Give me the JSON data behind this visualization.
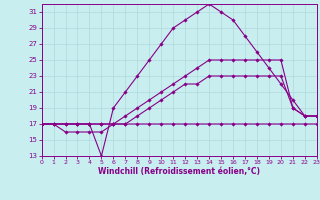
{
  "xlabel": "Windchill (Refroidissement éolien,°C)",
  "xlim": [
    0,
    23
  ],
  "ylim": [
    13,
    32
  ],
  "yticks": [
    13,
    15,
    17,
    19,
    21,
    23,
    25,
    27,
    29,
    31
  ],
  "xticks": [
    0,
    1,
    2,
    3,
    4,
    5,
    6,
    7,
    8,
    9,
    10,
    11,
    12,
    13,
    14,
    15,
    16,
    17,
    18,
    19,
    20,
    21,
    22,
    23
  ],
  "background_color": "#c8eef0",
  "grid_color": "#b0d8da",
  "line_color": "#880088",
  "lines": [
    {
      "x": [
        0,
        3,
        4,
        5,
        6,
        7,
        8,
        9,
        10,
        11,
        12,
        13,
        14,
        15,
        16,
        17,
        18,
        19,
        20,
        21,
        22,
        23
      ],
      "y": [
        17,
        17,
        17,
        13,
        19,
        21,
        23,
        25,
        27,
        29,
        30,
        31,
        32,
        31,
        30,
        28,
        26,
        24,
        22,
        20,
        18,
        18
      ]
    },
    {
      "x": [
        0,
        1,
        2,
        3,
        4,
        5,
        6,
        7,
        8,
        9,
        10,
        11,
        12,
        13,
        14,
        15,
        16,
        17,
        18,
        19,
        20,
        21,
        22,
        23
      ],
      "y": [
        17,
        17,
        17,
        17,
        17,
        17,
        17,
        18,
        19,
        20,
        21,
        22,
        23,
        24,
        25,
        25,
        25,
        25,
        25,
        25,
        25,
        19,
        18,
        18
      ]
    },
    {
      "x": [
        0,
        1,
        2,
        3,
        4,
        5,
        6,
        7,
        8,
        9,
        10,
        11,
        12,
        13,
        14,
        15,
        16,
        17,
        18,
        19,
        20,
        21,
        22,
        23
      ],
      "y": [
        17,
        17,
        17,
        17,
        17,
        17,
        17,
        17,
        18,
        19,
        20,
        21,
        22,
        22,
        23,
        23,
        23,
        23,
        23,
        23,
        23,
        19,
        18,
        18
      ]
    },
    {
      "x": [
        0,
        1,
        2,
        3,
        4,
        5,
        6,
        7,
        8,
        9,
        10,
        11,
        12,
        13,
        14,
        15,
        16,
        17,
        18,
        19,
        20,
        21,
        22,
        23
      ],
      "y": [
        17,
        17,
        16,
        16,
        16,
        16,
        17,
        17,
        17,
        17,
        17,
        17,
        17,
        17,
        17,
        17,
        17,
        17,
        17,
        17,
        17,
        17,
        17,
        17
      ]
    }
  ]
}
